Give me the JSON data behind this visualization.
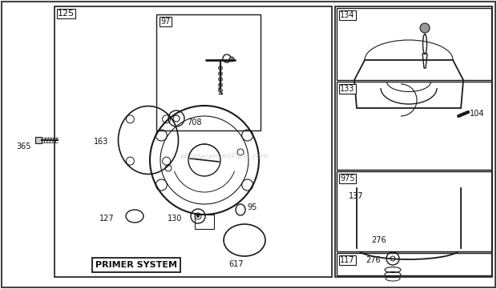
{
  "bg_color": "#ffffff",
  "border_color": "#1a1a1a",
  "text_color": "#111111",
  "watermark": "eReplacementParts.com",
  "figsize": [
    6.2,
    3.61
  ],
  "dpi": 100
}
